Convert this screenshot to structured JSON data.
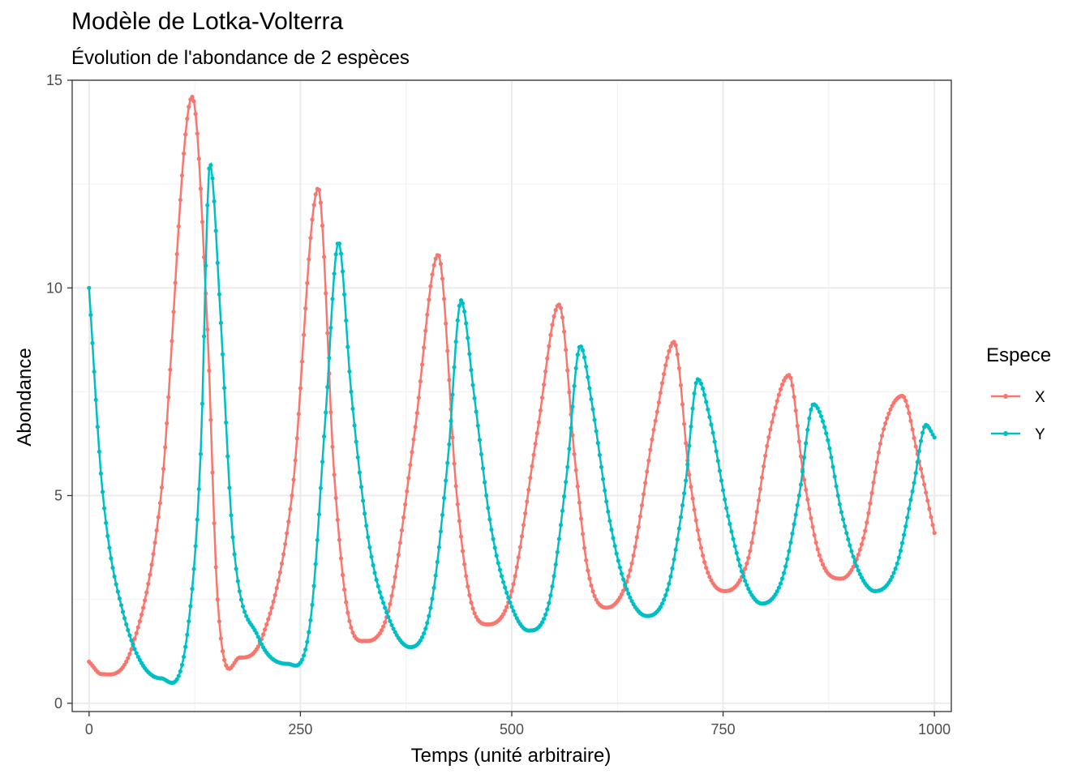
{
  "chart_data": {
    "type": "line",
    "title": "Modèle de Lotka-Volterra",
    "subtitle": "Évolution de l'abondance de 2 espèces",
    "xlabel": "Temps (unité arbitraire)",
    "ylabel": "Abondance",
    "xlim": [
      -20,
      1020
    ],
    "ylim": [
      -0.2,
      15.0
    ],
    "x_ticks": [
      0,
      250,
      500,
      750,
      1000
    ],
    "x_tick_labels": [
      "0",
      "250",
      "500",
      "750",
      "1000"
    ],
    "y_ticks": [
      0,
      5,
      10,
      15
    ],
    "y_tick_labels": [
      "0",
      "5",
      "10",
      "15"
    ],
    "grid": true,
    "legend": {
      "title": "Espece",
      "position": "right"
    },
    "series": [
      {
        "name": "X",
        "color": "#F8766D",
        "key_points": [
          [
            0,
            1.0
          ],
          [
            15,
            0.7
          ],
          [
            50,
            1.3
          ],
          [
            85,
            5.0
          ],
          [
            122,
            14.6
          ],
          [
            140,
            9.0
          ],
          [
            152,
            2.5
          ],
          [
            178,
            1.1
          ],
          [
            205,
            1.6
          ],
          [
            240,
            5.0
          ],
          [
            271,
            12.4
          ],
          [
            290,
            5.5
          ],
          [
            305,
            2.3
          ],
          [
            326,
            1.5
          ],
          [
            355,
            2.3
          ],
          [
            385,
            6.5
          ],
          [
            413,
            10.8
          ],
          [
            435,
            5.0
          ],
          [
            450,
            2.6
          ],
          [
            472,
            1.9
          ],
          [
            500,
            2.7
          ],
          [
            530,
            6.5
          ],
          [
            556,
            9.6
          ],
          [
            575,
            5.8
          ],
          [
            590,
            3.2
          ],
          [
            612,
            2.3
          ],
          [
            640,
            3.2
          ],
          [
            670,
            6.8
          ],
          [
            692,
            8.7
          ],
          [
            710,
            5.5
          ],
          [
            728,
            3.4
          ],
          [
            752,
            2.7
          ],
          [
            780,
            3.5
          ],
          [
            805,
            6.5
          ],
          [
            828,
            7.9
          ],
          [
            845,
            5.5
          ],
          [
            865,
            3.5
          ],
          [
            890,
            3.0
          ],
          [
            915,
            3.9
          ],
          [
            940,
            6.6
          ],
          [
            962,
            7.4
          ],
          [
            980,
            6.0
          ],
          [
            1000,
            4.1
          ]
        ]
      },
      {
        "name": "Y",
        "color": "#00BFC4",
        "key_points": [
          [
            0,
            10.0
          ],
          [
            15,
            5.3
          ],
          [
            40,
            2.2
          ],
          [
            85,
            0.6
          ],
          [
            115,
            1.5
          ],
          [
            132,
            6.0
          ],
          [
            143,
            13.0
          ],
          [
            155,
            9.5
          ],
          [
            170,
            4.0
          ],
          [
            200,
            1.6
          ],
          [
            235,
            0.95
          ],
          [
            262,
            2.0
          ],
          [
            280,
            7.0
          ],
          [
            295,
            11.1
          ],
          [
            310,
            7.5
          ],
          [
            330,
            4.0
          ],
          [
            350,
            2.3
          ],
          [
            380,
            1.35
          ],
          [
            405,
            2.4
          ],
          [
            425,
            6.0
          ],
          [
            440,
            9.7
          ],
          [
            455,
            7.5
          ],
          [
            475,
            4.3
          ],
          [
            495,
            2.6
          ],
          [
            520,
            1.75
          ],
          [
            545,
            2.5
          ],
          [
            565,
            5.5
          ],
          [
            581,
            8.6
          ],
          [
            595,
            7.2
          ],
          [
            615,
            4.5
          ],
          [
            635,
            2.8
          ],
          [
            660,
            2.1
          ],
          [
            685,
            2.8
          ],
          [
            705,
            5.2
          ],
          [
            720,
            7.8
          ],
          [
            735,
            6.8
          ],
          [
            755,
            4.6
          ],
          [
            775,
            3.0
          ],
          [
            796,
            2.4
          ],
          [
            820,
            3.0
          ],
          [
            840,
            5.0
          ],
          [
            857,
            7.2
          ],
          [
            872,
            6.5
          ],
          [
            890,
            4.6
          ],
          [
            910,
            3.2
          ],
          [
            930,
            2.7
          ],
          [
            955,
            3.3
          ],
          [
            975,
            5.2
          ],
          [
            990,
            6.7
          ],
          [
            1000,
            6.4
          ]
        ]
      }
    ]
  }
}
